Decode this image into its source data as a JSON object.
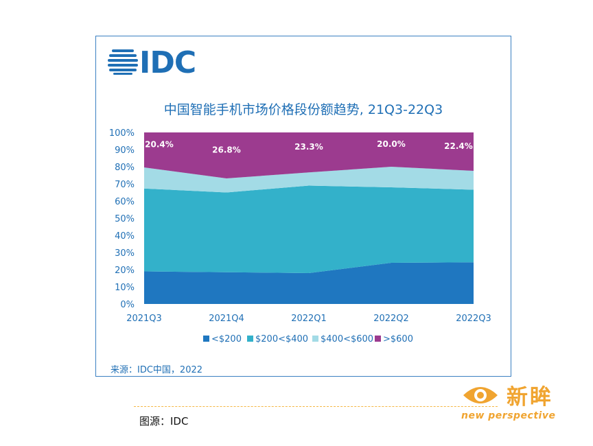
{
  "brand": {
    "logo_text": "IDC"
  },
  "chart_data": {
    "type": "area",
    "stacked": true,
    "title": "中国智能手机市场价格段份额趋势, 21Q3-22Q3",
    "categories": [
      "2021Q3",
      "2021Q4",
      "2022Q1",
      "2022Q2",
      "2022Q3"
    ],
    "ylim": [
      0,
      100
    ],
    "yticks": [
      "0%",
      "10%",
      "20%",
      "30%",
      "40%",
      "50%",
      "60%",
      "70%",
      "80%",
      "90%",
      "100%"
    ],
    "legend_position": "bottom",
    "grid": false,
    "series": [
      {
        "name": "<$200",
        "color": "#1f77c0",
        "values": [
          19,
          18.5,
          18,
          24,
          24.3
        ]
      },
      {
        "name": "$200<$400",
        "color": "#33b1ca",
        "values": [
          48.3,
          46.5,
          51,
          44,
          42.3
        ]
      },
      {
        "name": "$400<$600",
        "color": "#a3dbe6",
        "values": [
          12.3,
          8.2,
          7.7,
          12,
          11
        ]
      },
      {
        "name": ">$600",
        "color": "#9c3b8f",
        "values": [
          20.4,
          26.8,
          23.3,
          20.0,
          22.4
        ]
      }
    ],
    "data_labels": [
      "20.4%",
      "26.8%",
      "23.3%",
      "20.0%",
      "22.4%"
    ]
  },
  "source_line": "来源：IDC中国，2022",
  "credit": "图源：IDC",
  "watermark": {
    "title": "新眸",
    "subtitle": "new perspective",
    "color": "#f0a430"
  }
}
